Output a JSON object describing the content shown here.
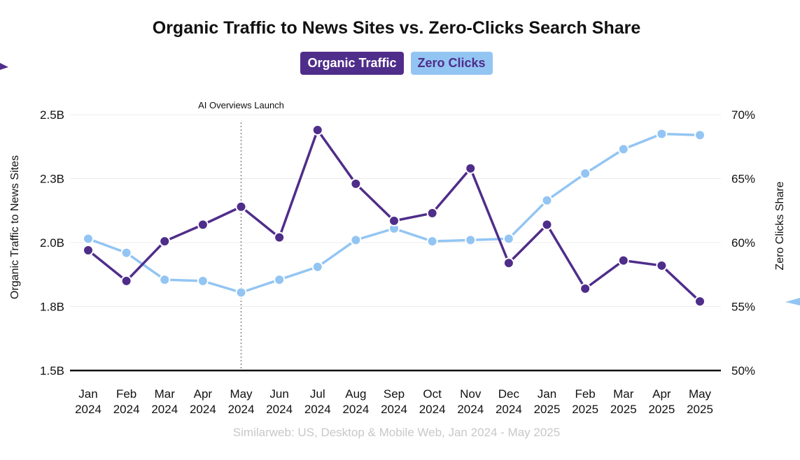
{
  "chart_data": {
    "type": "line",
    "title": "Organic Traffic to News Sites vs. Zero-Clicks Search Share",
    "categories": [
      [
        "Jan",
        "2024"
      ],
      [
        "Feb",
        "2024"
      ],
      [
        "Mar",
        "2024"
      ],
      [
        "Apr",
        "2024"
      ],
      [
        "May",
        "2024"
      ],
      [
        "Jun",
        "2024"
      ],
      [
        "Jul",
        "2024"
      ],
      [
        "Aug",
        "2024"
      ],
      [
        "Sep",
        "2024"
      ],
      [
        "Oct",
        "2024"
      ],
      [
        "Nov",
        "2024"
      ],
      [
        "Dec",
        "2024"
      ],
      [
        "Jan",
        "2025"
      ],
      [
        "Feb",
        "2025"
      ],
      [
        "Mar",
        "2025"
      ],
      [
        "Apr",
        "2025"
      ],
      [
        "May",
        "2025"
      ]
    ],
    "series": [
      {
        "name": "Organic Traffic",
        "axis": "left",
        "color": "#4f2d8a",
        "unit": "B",
        "values": [
          1.97,
          1.85,
          2.005,
          2.07,
          2.14,
          2.02,
          2.44,
          2.23,
          2.085,
          2.115,
          2.29,
          1.92,
          2.07,
          1.82,
          1.93,
          1.91,
          1.77
        ]
      },
      {
        "name": "Zero Clicks",
        "axis": "right",
        "color": "#93c5f3",
        "unit": "%",
        "values": [
          60.3,
          59.2,
          57.1,
          57.0,
          56.1,
          57.1,
          58.1,
          60.2,
          61.1,
          60.1,
          60.2,
          60.3,
          63.3,
          65.4,
          67.3,
          68.5,
          68.4
        ]
      }
    ],
    "ylabel": "Organic Traffic to News Sites",
    "ylabel_right": "Zero Clicks Share",
    "ylim": [
      1.5,
      2.5
    ],
    "ylim_right": [
      50,
      70
    ],
    "yticks": [
      {
        "value": 1.5,
        "label": "1.5B"
      },
      {
        "value": 1.75,
        "label": "1.8B"
      },
      {
        "value": 2.0,
        "label": "2.0B"
      },
      {
        "value": 2.25,
        "label": "2.3B"
      },
      {
        "value": 2.5,
        "label": "2.5B"
      }
    ],
    "yticks_right": [
      {
        "value": 50,
        "label": "50%"
      },
      {
        "value": 55,
        "label": "55%"
      },
      {
        "value": 60,
        "label": "60%"
      },
      {
        "value": 65,
        "label": "65%"
      },
      {
        "value": 70,
        "label": "70%"
      }
    ],
    "annotation": {
      "text": "AI Overviews Launch",
      "category_index": 4
    },
    "legend": "top-center",
    "grid": true,
    "source": "Similarweb: US, Desktop & Mobile Web, Jan 2024 - May 2025"
  }
}
